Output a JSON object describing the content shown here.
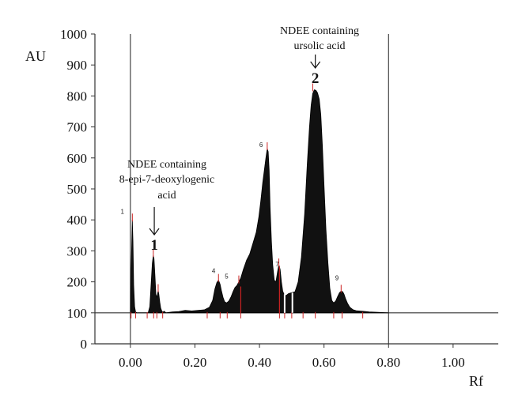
{
  "chart_data": {
    "type": "area",
    "title": "",
    "xlabel": "Rf",
    "ylabel": "AU",
    "xlim": [
      -0.11,
      1.14
    ],
    "ylim": [
      0,
      1000
    ],
    "baseline": 100,
    "x_ticks": [
      "0.00",
      "0.20",
      "0.40",
      "0.60",
      "0.80",
      "1.00"
    ],
    "y_ticks": [
      "0",
      "100",
      "200",
      "300",
      "400",
      "500",
      "600",
      "700",
      "800",
      "900",
      "1000"
    ],
    "vertical_lines": [
      0.0,
      0.8
    ],
    "series": [
      {
        "x": [
          0.0,
          0.003,
          0.006,
          0.008,
          0.01,
          0.013,
          0.016,
          0.02,
          0.03,
          0.045,
          0.055,
          0.06,
          0.064,
          0.068,
          0.071,
          0.073,
          0.076,
          0.079,
          0.082,
          0.084,
          0.086,
          0.088,
          0.091,
          0.094,
          0.097,
          0.1,
          0.105,
          0.11,
          0.13,
          0.15,
          0.17,
          0.19,
          0.21,
          0.23,
          0.245,
          0.255,
          0.262,
          0.268,
          0.273,
          0.278,
          0.282,
          0.287,
          0.292,
          0.298,
          0.305,
          0.312,
          0.318,
          0.324,
          0.33,
          0.336,
          0.342,
          0.35,
          0.36,
          0.37,
          0.38,
          0.39,
          0.398,
          0.404,
          0.41,
          0.415,
          0.42,
          0.424,
          0.427,
          0.43,
          0.433,
          0.437,
          0.441,
          0.446,
          0.451,
          0.456,
          0.46,
          0.464,
          0.468,
          0.472,
          0.476,
          0.48,
          0.485,
          0.49,
          0.5,
          0.51,
          0.52,
          0.53,
          0.54,
          0.548,
          0.555,
          0.56,
          0.565,
          0.57,
          0.575,
          0.58,
          0.585,
          0.59,
          0.595,
          0.6,
          0.606,
          0.612,
          0.618,
          0.624,
          0.63,
          0.636,
          0.642,
          0.648,
          0.653,
          0.658,
          0.662,
          0.667,
          0.673,
          0.68,
          0.69,
          0.7,
          0.72,
          0.74,
          0.76,
          0.78,
          0.8
        ],
        "y": [
          100,
          270,
          400,
          330,
          190,
          120,
          103,
          100,
          100,
          100,
          100,
          120,
          190,
          260,
          285,
          275,
          220,
          160,
          150,
          160,
          172,
          160,
          135,
          115,
          106,
          102,
          105,
          100,
          103,
          104,
          108,
          106,
          108,
          110,
          118,
          140,
          178,
          198,
          205,
          192,
          172,
          150,
          136,
          132,
          138,
          152,
          168,
          182,
          188,
          200,
          212,
          240,
          270,
          290,
          325,
          360,
          410,
          460,
          520,
          560,
          600,
          630,
          620,
          560,
          440,
          330,
          255,
          205,
          200,
          232,
          255,
          240,
          200,
          170,
          160,
          155,
          158,
          162,
          165,
          168,
          200,
          280,
          420,
          580,
          700,
          770,
          808,
          820,
          818,
          810,
          790,
          740,
          640,
          510,
          370,
          262,
          180,
          140,
          132,
          138,
          152,
          165,
          170,
          168,
          160,
          145,
          130,
          118,
          110,
          107,
          105,
          103,
          102,
          101,
          100
        ]
      }
    ],
    "peak_labels": [
      {
        "label": "1",
        "x": -0.025,
        "y": 420
      },
      {
        "label": "4",
        "x": 0.258,
        "y": 228
      },
      {
        "label": "5",
        "x": 0.298,
        "y": 210
      },
      {
        "label": "6",
        "x": 0.405,
        "y": 635
      },
      {
        "label": "7",
        "x": 0.455,
        "y": 250
      },
      {
        "label": "9",
        "x": 0.64,
        "y": 205
      }
    ],
    "annotations": [
      {
        "lines": [
          "NDEE containing",
          "8-epi-7-deoxylogenic",
          "acid"
        ],
        "number": "1",
        "peak_x": 0.074
      },
      {
        "lines": [
          "NDEE containing",
          "ursolic acid"
        ],
        "number": "2",
        "peak_x": 0.573
      }
    ],
    "colors": {
      "fill": "#111111",
      "marker": "#cc2222",
      "axis": "#333333"
    }
  }
}
